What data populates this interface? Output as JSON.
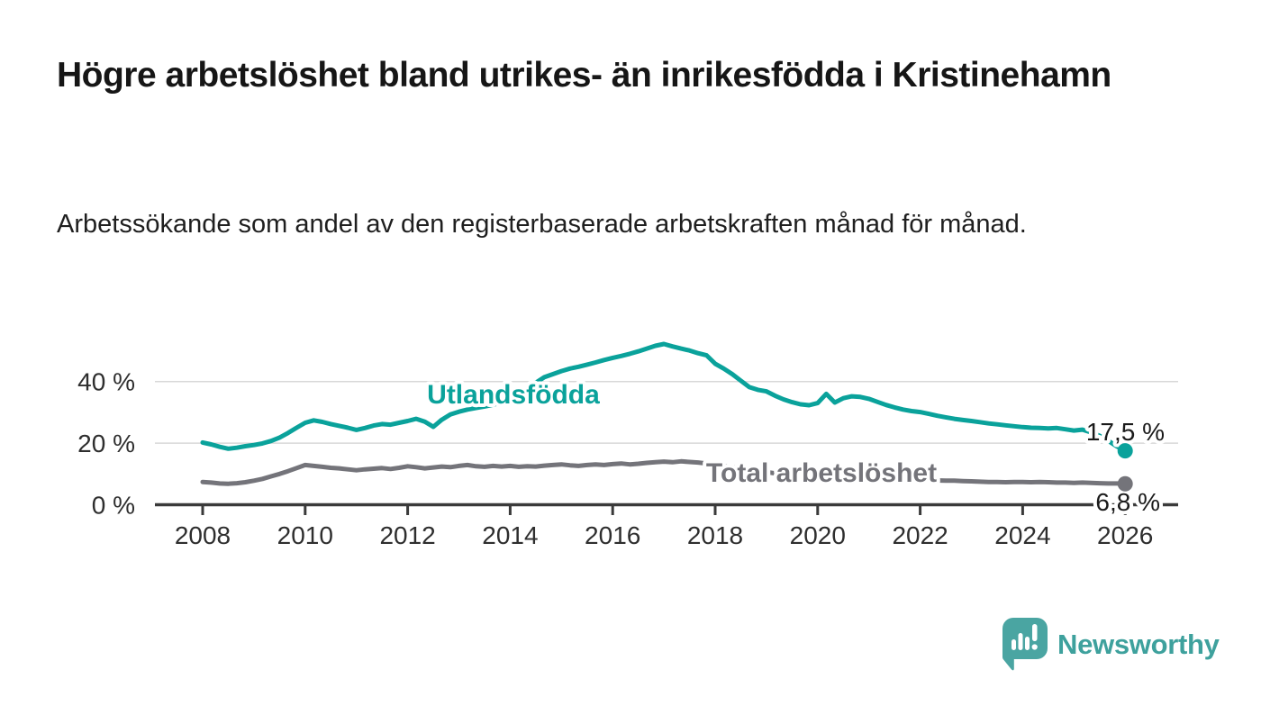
{
  "header": {
    "title": "Högre arbetslöshet bland utrikes- än inrikesfödda i Kristinehamn",
    "subtitle": "Arbetssökande som andel av den registerbaserade arbetskraften månad för månad."
  },
  "chart_data": {
    "type": "line",
    "title": "",
    "xlabel": "",
    "ylabel": "",
    "x_start_year": 2008,
    "points_per_year": 6,
    "x_end_year": 2026,
    "ylim": [
      0,
      55
    ],
    "grid": "horizontal",
    "y_ticks": [
      {
        "value": 0,
        "label": "0 %"
      },
      {
        "value": 20,
        "label": "20 %"
      },
      {
        "value": 40,
        "label": "40 %"
      }
    ],
    "x_tick_labels": [
      "2008",
      "2010",
      "2012",
      "2014",
      "2016",
      "2018",
      "2020",
      "2022",
      "2024",
      "2026"
    ],
    "series": [
      {
        "name": "Total arbetslöshet",
        "color": "#74747a",
        "end_label": "6,8 %",
        "end_value": 6.8,
        "values": [
          7.4,
          7.2,
          6.9,
          6.8,
          7.0,
          7.3,
          7.8,
          8.4,
          9.2,
          10.0,
          10.9,
          11.9,
          12.9,
          12.6,
          12.3,
          12.0,
          11.8,
          11.5,
          11.2,
          11.5,
          11.7,
          11.9,
          11.6,
          12.0,
          12.5,
          12.2,
          11.8,
          12.1,
          12.4,
          12.2,
          12.6,
          12.9,
          12.5,
          12.3,
          12.6,
          12.4,
          12.6,
          12.3,
          12.5,
          12.4,
          12.7,
          12.9,
          13.1,
          12.8,
          12.6,
          12.9,
          13.1,
          12.9,
          13.2,
          13.4,
          13.1,
          13.3,
          13.6,
          13.8,
          14.0,
          13.8,
          14.1,
          13.9,
          13.7,
          13.4,
          13.0,
          12.6,
          12.2,
          11.8,
          11.4,
          11.0,
          10.6,
          10.2,
          9.9,
          9.6,
          9.4,
          9.2,
          9.4,
          9.8,
          10.0,
          9.8,
          9.6,
          9.3,
          9.0,
          8.8,
          8.6,
          8.4,
          8.2,
          8.1,
          8.0,
          7.9,
          7.9,
          7.8,
          7.8,
          7.7,
          7.6,
          7.5,
          7.4,
          7.4,
          7.3,
          7.4,
          7.4,
          7.3,
          7.4,
          7.3,
          7.2,
          7.2,
          7.1,
          7.2,
          7.1,
          7.0,
          6.9,
          6.9,
          6.8
        ]
      },
      {
        "name": "Utlandsfödda",
        "color": "#0aa29b",
        "end_label": "17,5 %",
        "end_value": 17.5,
        "values": [
          20.2,
          19.6,
          18.8,
          18.2,
          18.5,
          19.0,
          19.4,
          19.9,
          20.7,
          21.8,
          23.3,
          25.0,
          26.6,
          27.4,
          26.9,
          26.2,
          25.6,
          25.0,
          24.3,
          24.9,
          25.7,
          26.2,
          26.0,
          26.6,
          27.2,
          27.9,
          27.0,
          25.3,
          27.6,
          29.3,
          30.2,
          30.9,
          31.4,
          31.9,
          32.5,
          33.2,
          34.1,
          35.6,
          37.6,
          39.6,
          41.4,
          42.4,
          43.4,
          44.2,
          44.8,
          45.5,
          46.2,
          47.0,
          47.7,
          48.3,
          49.0,
          49.8,
          50.7,
          51.6,
          52.2,
          51.4,
          50.7,
          50.1,
          49.2,
          48.5,
          45.8,
          44.2,
          42.4,
          40.3,
          38.2,
          37.3,
          36.8,
          35.4,
          34.2,
          33.3,
          32.6,
          32.3,
          33.0,
          36.0,
          33.2,
          34.6,
          35.2,
          35.0,
          34.4,
          33.4,
          32.4,
          31.6,
          30.9,
          30.4,
          30.1,
          29.5,
          28.9,
          28.4,
          27.9,
          27.5,
          27.2,
          26.8,
          26.4,
          26.1,
          25.8,
          25.5,
          25.2,
          25.0,
          24.9,
          24.8,
          24.9,
          24.5,
          24.1,
          24.4,
          23.5,
          22.4,
          20.8,
          19.0,
          17.5
        ]
      }
    ],
    "colors": {
      "grid": "#d8d8d8",
      "axis": "#3a3a3a",
      "tick_text": "#2e2e2e",
      "end_label_text": "#1a1a1a"
    }
  },
  "footer": {
    "brand": "Newsworthy",
    "brand_color": "#3ea19d",
    "logo_color": "#4aa5a2",
    "logo_icon": "newsworthy-speech-bubble-barchart-icon"
  }
}
